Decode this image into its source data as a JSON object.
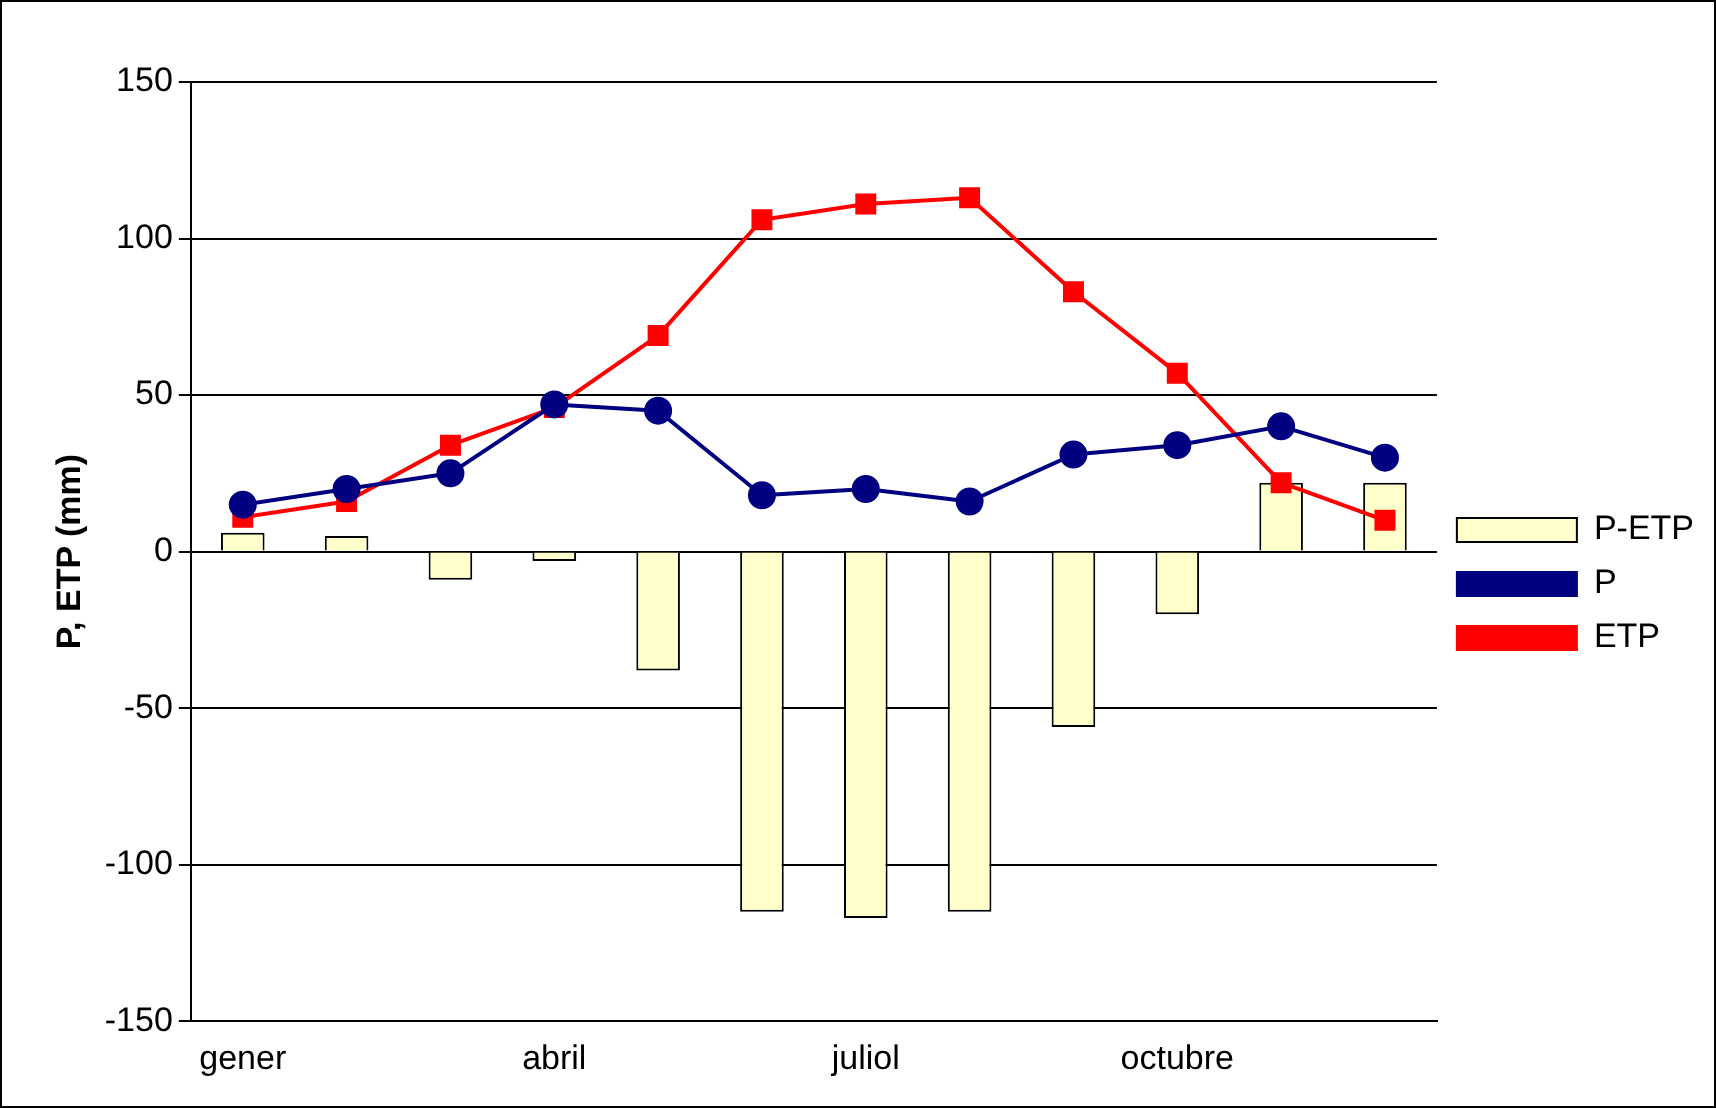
{
  "chart_data": {
    "type": "bar",
    "ylabel": "P, ETP (mm)",
    "categories": [
      "gener",
      null,
      null,
      "abril",
      null,
      null,
      "juliol",
      null,
      null,
      "octubre",
      null,
      null
    ],
    "series": [
      {
        "name": "P-ETP",
        "color": "#ffffcc",
        "values": [
          6,
          5,
          -9,
          -3,
          -38,
          -115,
          -117,
          -115,
          -56,
          -20,
          22,
          22
        ]
      },
      {
        "name": "P",
        "type": "line",
        "color": "#000080",
        "marker": "circle",
        "values": [
          15,
          20,
          25,
          47,
          45,
          18,
          20,
          16,
          31,
          34,
          40,
          30
        ]
      },
      {
        "name": "ETP",
        "type": "line",
        "color": "#ff0000",
        "marker": "square",
        "values": [
          11,
          16,
          34,
          46,
          69,
          106,
          111,
          113,
          83,
          57,
          22,
          10
        ]
      }
    ],
    "ylim": [
      -150,
      150
    ],
    "yticks": [
      -150,
      -100,
      -50,
      0,
      50,
      100,
      150
    ],
    "grid": "y",
    "legend": "right"
  }
}
